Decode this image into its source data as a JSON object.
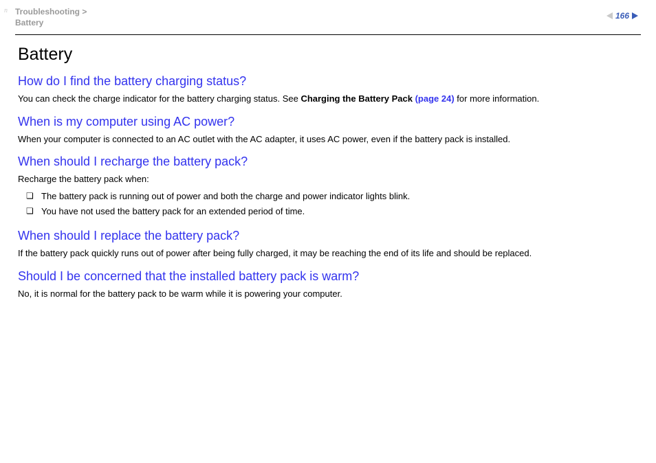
{
  "header": {
    "breadcrumb_top": "Troubleshooting >",
    "breadcrumb_bottom": "Battery",
    "page_number": "166",
    "n_marker": "n"
  },
  "page": {
    "title": "Battery",
    "sections": [
      {
        "heading": "How do I find the battery charging status?",
        "body_pre": "You can check the charge indicator for the battery charging status. See ",
        "body_bold": "Charging the Battery Pack ",
        "body_link": "(page 24)",
        "body_post": " for more information."
      },
      {
        "heading": "When is my computer using AC power?",
        "body": "When your computer is connected to an AC outlet with the AC adapter, it uses AC power, even if the battery pack is installed."
      },
      {
        "heading": "When should I recharge the battery pack?",
        "body": "Recharge the battery pack when:",
        "bullets": [
          "The battery pack is running out of power and both the charge and power indicator lights blink.",
          "You have not used the battery pack for an extended period of time."
        ]
      },
      {
        "heading": "When should I replace the battery pack?",
        "body": "If the battery pack quickly runs out of power after being fully charged, it may be reaching the end of its life and should be replaced."
      },
      {
        "heading": "Should I be concerned that the installed battery pack is warm?",
        "body": "No, it is normal for the battery pack to be warm while it is powering your computer."
      }
    ]
  }
}
